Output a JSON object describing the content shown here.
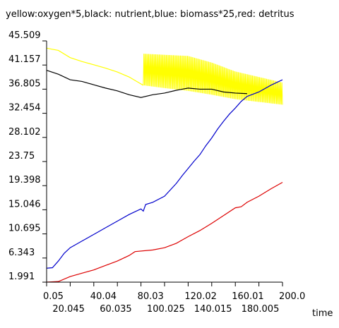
{
  "chart_data": {
    "type": "line",
    "title": "yellow:oxygen*5,black: nutrient,blue: biomass*25,red: detritus",
    "xlabel": "time",
    "ylabel": "",
    "xlim": [
      0.05,
      200.0
    ],
    "ylim": [
      1.991,
      45.509
    ],
    "grid": false,
    "y_ticks": [
      "45.509",
      "41.157",
      "36.805",
      "32.454",
      "28.102",
      "23.75",
      "19.398",
      "15.046",
      "10.695",
      "6.343",
      "1.991"
    ],
    "x_ticks_top": [
      "0.05",
      "40.04",
      "80.03",
      "120.02",
      "160.01",
      "200.0"
    ],
    "x_ticks_bottom": [
      "20.045",
      "60.035",
      "100.025",
      "140.015",
      "180.005"
    ],
    "series": [
      {
        "name": "oxygen*5",
        "color": "#ffff00",
        "points": [
          [
            0.05,
            44.2
          ],
          [
            10,
            43.8
          ],
          [
            20,
            42.5
          ],
          [
            30,
            41.8
          ],
          [
            40,
            41.2
          ],
          [
            50,
            40.6
          ],
          [
            60,
            39.9
          ],
          [
            70,
            39.0
          ],
          [
            78,
            38.0
          ],
          [
            82,
            37.5
          ]
        ],
        "band": [
          [
            82,
            37.5,
            43.2
          ],
          [
            100,
            37.0,
            43.0
          ],
          [
            120,
            36.5,
            42.8
          ],
          [
            140,
            35.8,
            41.6
          ],
          [
            160,
            35.0,
            40.0
          ],
          [
            180,
            34.5,
            39.0
          ],
          [
            200,
            34.0,
            38.0
          ]
        ]
      },
      {
        "name": "nutrient",
        "color": "#000000",
        "points": [
          [
            0.05,
            40.2
          ],
          [
            10,
            39.5
          ],
          [
            20,
            38.5
          ],
          [
            30,
            38.2
          ],
          [
            40,
            37.6
          ],
          [
            50,
            37.0
          ],
          [
            60,
            36.5
          ],
          [
            70,
            35.8
          ],
          [
            80,
            35.3
          ],
          [
            90,
            35.8
          ],
          [
            100,
            36.1
          ],
          [
            110,
            36.6
          ],
          [
            120,
            37.0
          ],
          [
            130,
            36.8
          ],
          [
            140,
            36.8
          ],
          [
            150,
            36.3
          ],
          [
            160,
            36.1
          ],
          [
            170,
            36.0
          ]
        ]
      },
      {
        "name": "biomass*25",
        "color": "#0000cc",
        "points": [
          [
            0.05,
            4.5
          ],
          [
            5,
            4.6
          ],
          [
            10,
            5.8
          ],
          [
            15,
            7.2
          ],
          [
            20,
            8.2
          ],
          [
            25,
            8.8
          ],
          [
            30,
            9.4
          ],
          [
            40,
            10.6
          ],
          [
            50,
            11.8
          ],
          [
            60,
            13.0
          ],
          [
            70,
            14.2
          ],
          [
            80,
            15.2
          ],
          [
            82,
            14.8
          ],
          [
            84,
            16.0
          ],
          [
            90,
            16.4
          ],
          [
            100,
            17.5
          ],
          [
            110,
            19.8
          ],
          [
            115,
            21.2
          ],
          [
            120,
            22.5
          ],
          [
            125,
            23.8
          ],
          [
            130,
            25.0
          ],
          [
            135,
            26.6
          ],
          [
            140,
            28.0
          ],
          [
            145,
            29.6
          ],
          [
            150,
            31.0
          ],
          [
            155,
            32.3
          ],
          [
            160,
            33.4
          ],
          [
            165,
            34.6
          ],
          [
            170,
            35.5
          ],
          [
            180,
            36.3
          ],
          [
            190,
            37.5
          ],
          [
            200,
            38.5
          ]
        ]
      },
      {
        "name": "detritus",
        "color": "#dd0000",
        "points": [
          [
            0.05,
            2.0
          ],
          [
            10,
            2.1
          ],
          [
            20,
            3.0
          ],
          [
            30,
            3.6
          ],
          [
            40,
            4.2
          ],
          [
            50,
            5.0
          ],
          [
            60,
            5.8
          ],
          [
            70,
            6.8
          ],
          [
            75,
            7.5
          ],
          [
            90,
            7.8
          ],
          [
            100,
            8.2
          ],
          [
            110,
            9.0
          ],
          [
            120,
            10.2
          ],
          [
            130,
            11.3
          ],
          [
            140,
            12.6
          ],
          [
            150,
            14.0
          ],
          [
            160,
            15.4
          ],
          [
            165,
            15.6
          ],
          [
            170,
            16.4
          ],
          [
            180,
            17.5
          ],
          [
            190,
            18.8
          ],
          [
            200,
            20.0
          ]
        ]
      }
    ]
  }
}
